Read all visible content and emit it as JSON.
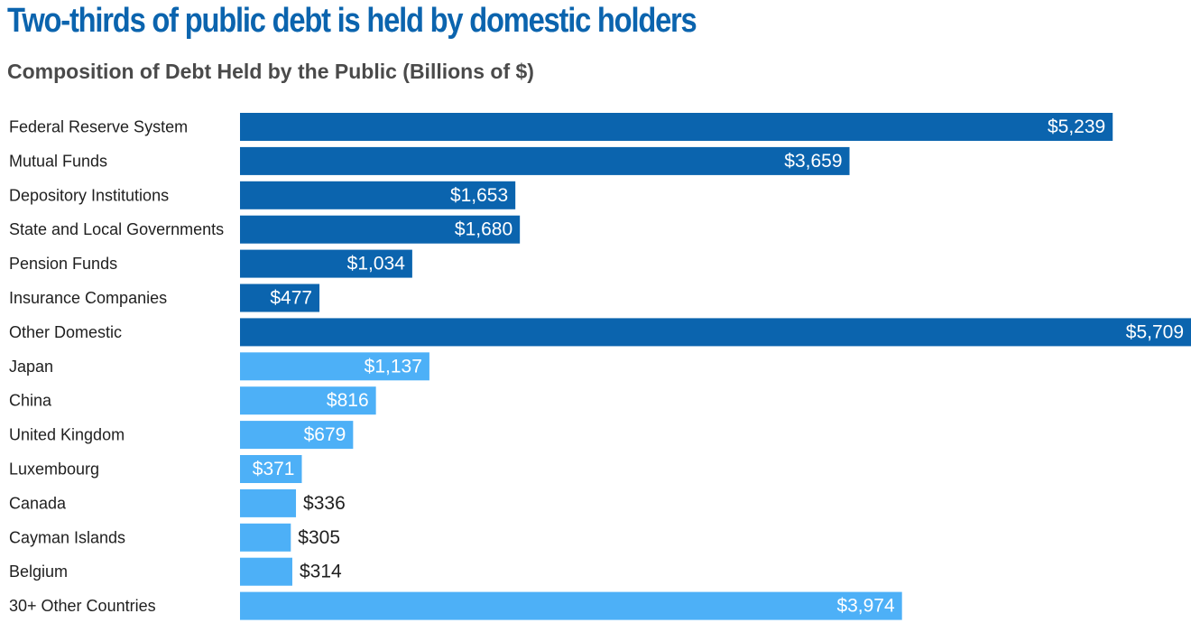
{
  "title": "Two-thirds of public debt is held by domestic holders",
  "subtitle": "Composition of Debt Held by the Public (Billions of $)",
  "colors": {
    "domestic": "#0b64ae",
    "foreign": "#4db0f7",
    "title": "#0b64ae",
    "subtitle": "#4a4a4a",
    "inside_label": "#ffffff",
    "outside_label": "#1f1f1f"
  },
  "chart_data": {
    "type": "bar",
    "orientation": "horizontal",
    "title": "Two-thirds of public debt is held by domestic holders",
    "subtitle": "Composition of Debt Held by the Public (Billions of $)",
    "xlabel": "",
    "ylabel": "",
    "xlim": [
      0,
      5709
    ],
    "grid": false,
    "legend": "none",
    "categories": [
      "Federal Reserve System",
      "Mutual Funds",
      "Depository Institutions",
      "State and Local Governments",
      "Pension Funds",
      "Insurance Companies",
      "Other Domestic",
      "Japan",
      "China",
      "United Kingdom",
      "Luxembourg",
      "Canada",
      "Cayman Islands",
      "Belgium",
      "30+ Other Countries"
    ],
    "values": [
      5239,
      3659,
      1653,
      1680,
      1034,
      477,
      5709,
      1137,
      816,
      679,
      371,
      336,
      305,
      314,
      3974
    ],
    "value_labels": [
      "$5,239",
      "$3,659",
      "$1,653",
      "$1,680",
      "$1,034",
      "$477",
      "$5,709",
      "$1,137",
      "$816",
      "$679",
      "$371",
      "$336",
      "$305",
      "$314",
      "$3,974"
    ],
    "groups": [
      "domestic",
      "domestic",
      "domestic",
      "domestic",
      "domestic",
      "domestic",
      "domestic",
      "foreign",
      "foreign",
      "foreign",
      "foreign",
      "foreign",
      "foreign",
      "foreign",
      "foreign"
    ]
  }
}
